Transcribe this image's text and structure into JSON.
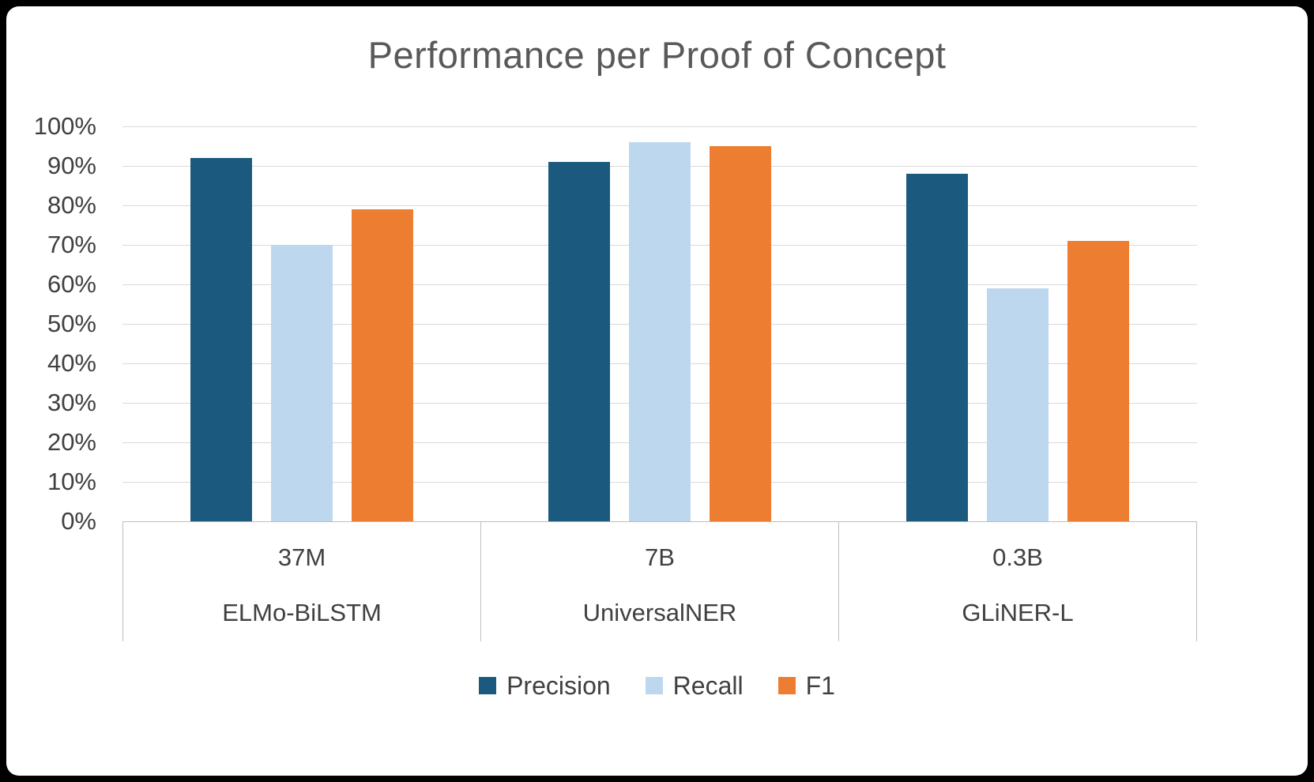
{
  "chart_data": {
    "type": "bar",
    "title": "Performance per Proof of Concept",
    "xlabel": "",
    "ylabel": "",
    "unit": "percent",
    "ylim": [
      0,
      100
    ],
    "ytick_step": 10,
    "y_tick_labels": [
      "0%",
      "10%",
      "20%",
      "30%",
      "40%",
      "50%",
      "60%",
      "70%",
      "80%",
      "90%",
      "100%"
    ],
    "grid": true,
    "legend_position": "bottom",
    "categories": [
      {
        "param_count": "37M",
        "model": "ELMo-BiLSTM"
      },
      {
        "param_count": "7B",
        "model": "UniversalNER"
      },
      {
        "param_count": "0.3B",
        "model": "GLiNER-L"
      }
    ],
    "series": [
      {
        "name": "Precision",
        "color": "#1b5a7e",
        "values": [
          92,
          91,
          88
        ]
      },
      {
        "name": "Recall",
        "color": "#bdd7ee",
        "values": [
          70,
          96,
          59
        ]
      },
      {
        "name": "F1",
        "color": "#ed7d31",
        "values": [
          79,
          95,
          71
        ]
      }
    ],
    "colors": {
      "title": "#595959",
      "axis_text": "#404040",
      "gridline": "#d9d9d9",
      "axis_line": "#bfbfbf",
      "background": "#ffffff",
      "frame": "#000000"
    }
  }
}
